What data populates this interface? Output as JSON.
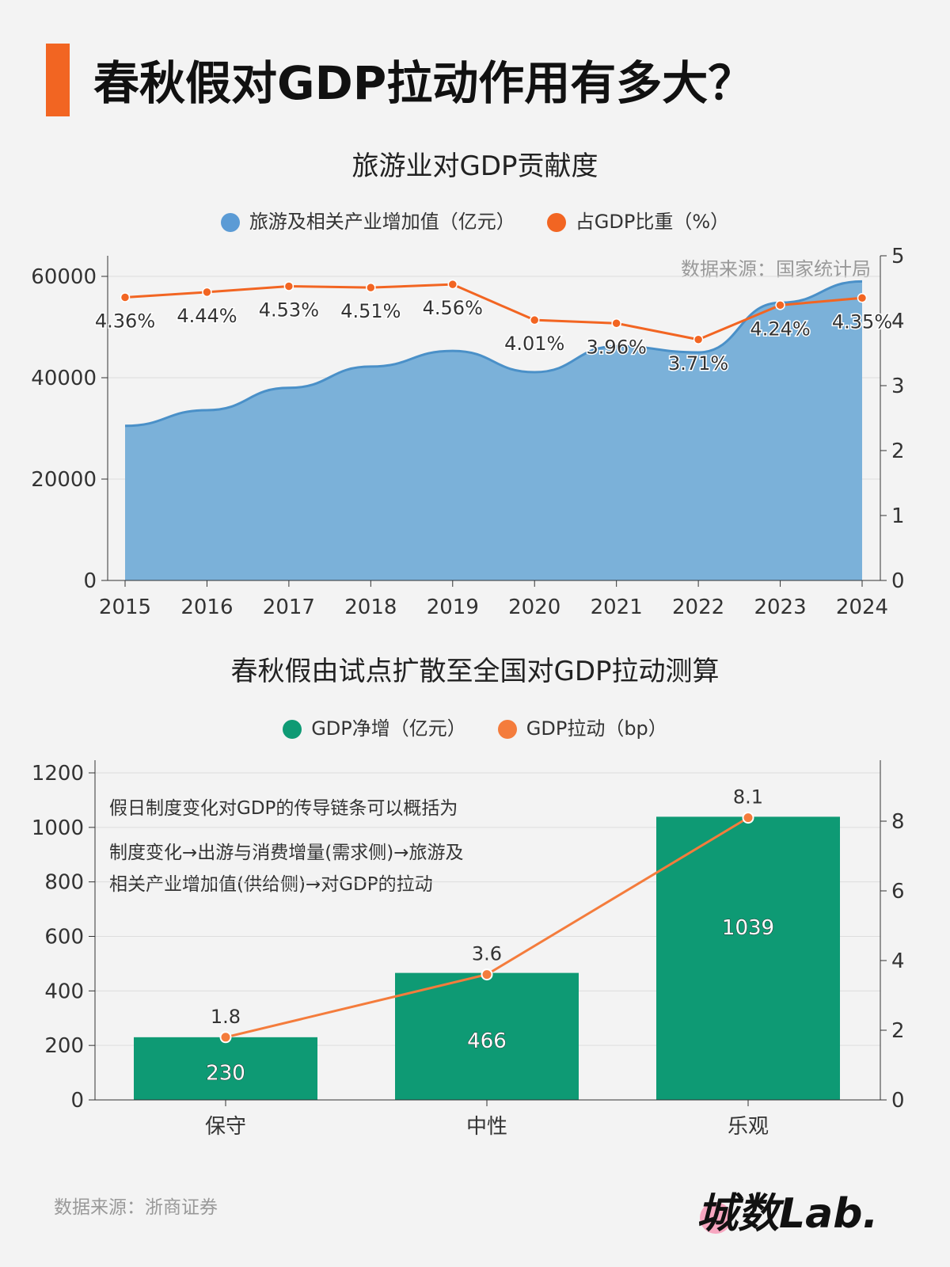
{
  "title": "春秋假对GDP拉动作用有多大？",
  "source_bottom": "数据来源：浙商证券",
  "logo": "城数Lab.",
  "chart_data": [
    {
      "type": "area+line",
      "title": "旅游业对GDP贡献度",
      "source_note": "数据来源：国家统计局",
      "categories": [
        "2015",
        "2016",
        "2017",
        "2018",
        "2019",
        "2020",
        "2021",
        "2022",
        "2023",
        "2024"
      ],
      "series": [
        {
          "name": "旅游及相关产业增加值（亿元）",
          "axis": "left",
          "color": "#5b9bd5",
          "values": [
            30500,
            33600,
            38000,
            42200,
            45300,
            41100,
            46200,
            45000,
            54800,
            59000
          ]
        },
        {
          "name": "占GDP比重（%）",
          "axis": "right",
          "color": "#f26522",
          "values": [
            4.36,
            4.44,
            4.53,
            4.51,
            4.56,
            4.01,
            3.96,
            3.71,
            4.24,
            4.35
          ],
          "labels": [
            "4.36%",
            "4.44%",
            "4.53%",
            "4.51%",
            "4.56%",
            "4.01%",
            "3.96%",
            "3.71%",
            "4.24%",
            "4.35%"
          ]
        }
      ],
      "ylim_left": [
        0,
        60000
      ],
      "yticks_left": [
        "0",
        "20000",
        "40000",
        "60000"
      ],
      "ylim_right": [
        0,
        5
      ],
      "yticks_right": [
        "0",
        "1",
        "2",
        "3",
        "4",
        "5"
      ],
      "grid": true,
      "legend": "top"
    },
    {
      "type": "bar+line",
      "title": "春秋假由试点扩散至全国对GDP拉动测算",
      "annotation": [
        "假日制度变化对GDP的传导链条可以概括为",
        "制度变化→出游与消费增量(需求侧)→旅游及",
        "相关产业增加值(供给侧)→对GDP的拉动"
      ],
      "categories": [
        "保守",
        "中性",
        "乐观"
      ],
      "series": [
        {
          "name": "GDP净增（亿元）",
          "axis": "left",
          "color": "#0e9a74",
          "values": [
            230,
            466,
            1039
          ]
        },
        {
          "name": "GDP拉动（bp）",
          "axis": "right",
          "color": "#f47c3c",
          "values": [
            1.8,
            3.6,
            8.1
          ]
        }
      ],
      "ylim_left": [
        0,
        1200
      ],
      "yticks_left": [
        "0",
        "200",
        "400",
        "600",
        "800",
        "1000",
        "1200"
      ],
      "ylim_right": [
        0,
        9.5
      ],
      "yticks_right": [
        "0",
        "2",
        "4",
        "6",
        "8"
      ],
      "grid": true,
      "legend": "top"
    }
  ]
}
